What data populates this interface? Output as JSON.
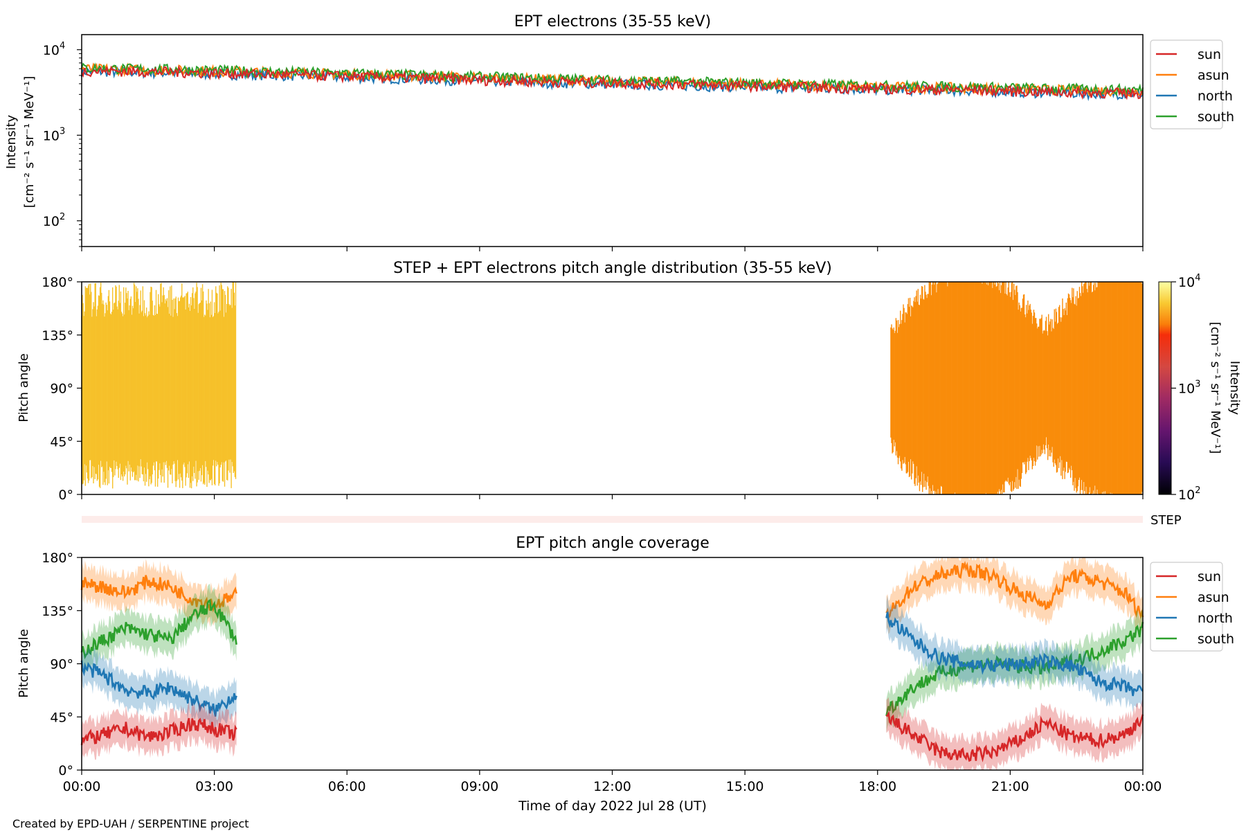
{
  "footer": {
    "credit": "Created by EPD-UAH / SERPENTINE project"
  },
  "x_axis": {
    "label": "Time of day 2022 Jul 28 (UT)",
    "ticks": [
      "00:00",
      "03:00",
      "06:00",
      "09:00",
      "12:00",
      "15:00",
      "18:00",
      "21:00",
      "00:00"
    ],
    "range_hours": [
      0,
      24
    ]
  },
  "colors": {
    "sun": "#d62728",
    "asun": "#ff7f0e",
    "north": "#1f77b4",
    "south": "#2ca02c"
  },
  "chart_data": [
    {
      "type": "line",
      "title": "EPT electrons (35-55 keV)",
      "ylabel_line1": "Intensity",
      "ylabel_line2": "[cm⁻² s⁻¹ sr⁻¹ MeV⁻¹]",
      "yscale": "log",
      "ylim": [
        50,
        15000
      ],
      "yticks": [
        {
          "base": "10",
          "exp": "2",
          "value": 100
        },
        {
          "base": "10",
          "exp": "3",
          "value": 1000
        },
        {
          "base": "10",
          "exp": "4",
          "value": 10000
        }
      ],
      "legend": {
        "placement": "outside-right",
        "entries": [
          "sun",
          "asun",
          "north",
          "south"
        ]
      },
      "x": [
        0,
        2,
        4,
        6,
        8,
        10,
        12,
        14,
        16,
        18,
        20,
        22,
        24
      ],
      "series": [
        {
          "name": "sun",
          "color": "#d62728",
          "values": [
            5700,
            5500,
            5200,
            4900,
            4600,
            4300,
            4100,
            3900,
            3700,
            3500,
            3400,
            3200,
            3100
          ]
        },
        {
          "name": "asun",
          "color": "#ff7f0e",
          "values": [
            6000,
            5800,
            5500,
            5200,
            4900,
            4600,
            4300,
            4100,
            3900,
            3700,
            3600,
            3400,
            3300
          ]
        },
        {
          "name": "north",
          "color": "#1f77b4",
          "values": [
            5600,
            5400,
            5100,
            4800,
            4500,
            4200,
            4000,
            3800,
            3600,
            3450,
            3350,
            3150,
            3050
          ]
        },
        {
          "name": "south",
          "color": "#2ca02c",
          "values": [
            6100,
            5900,
            5600,
            5300,
            5000,
            4700,
            4400,
            4200,
            4000,
            3800,
            3700,
            3500,
            3400
          ]
        }
      ]
    },
    {
      "type": "heatmap",
      "title": "STEP + EPT electrons pitch angle distribution (35-55 keV)",
      "ylabel": "Pitch angle",
      "ylim": [
        0,
        180
      ],
      "yticks": [
        "0°",
        "45°",
        "90°",
        "135°",
        "180°"
      ],
      "colorbar": {
        "label_line1": "Intensity",
        "label_line2": "[cm⁻² s⁻¹ sr⁻¹ MeV⁻¹]",
        "ticks": [
          {
            "base": "10",
            "exp": "2",
            "value": 100
          },
          {
            "base": "10",
            "exp": "3",
            "value": 1000
          },
          {
            "base": "10",
            "exp": "4",
            "value": 10000
          }
        ],
        "range": [
          100,
          10000
        ]
      },
      "segments": [
        {
          "start_h": 0.0,
          "end_h": 3.5,
          "intensity": 5800,
          "color": "#f6c12a"
        },
        {
          "start_h": 18.3,
          "end_h": 24.0,
          "intensity": 3500,
          "color": "#f98c0a"
        }
      ],
      "step_bar_label": "STEP"
    },
    {
      "type": "line",
      "title": "EPT pitch angle coverage",
      "ylabel": "Pitch angle",
      "ylim": [
        0,
        180
      ],
      "yticks": [
        "0°",
        "45°",
        "90°",
        "135°",
        "180°"
      ],
      "legend": {
        "placement": "outside-right",
        "entries": [
          "sun",
          "asun",
          "north",
          "south"
        ]
      },
      "segments": [
        {
          "x": [
            0.0,
            0.5,
            1.0,
            1.5,
            2.0,
            2.5,
            3.0,
            3.5
          ],
          "series": [
            {
              "name": "sun",
              "color": "#d62728",
              "values": [
                25,
                30,
                35,
                28,
                32,
                40,
                35,
                30
              ]
            },
            {
              "name": "asun",
              "color": "#ff7f0e",
              "values": [
                158,
                155,
                150,
                160,
                155,
                145,
                140,
                148
              ]
            },
            {
              "name": "north",
              "color": "#1f77b4",
              "values": [
                88,
                80,
                68,
                65,
                70,
                60,
                50,
                65
              ]
            },
            {
              "name": "south",
              "color": "#2ca02c",
              "values": [
                100,
                110,
                120,
                115,
                110,
                130,
                140,
                110
              ]
            }
          ]
        },
        {
          "x": [
            18.2,
            18.8,
            19.4,
            20.0,
            20.6,
            21.2,
            21.8,
            22.4,
            23.0,
            23.6,
            24.0
          ],
          "series": [
            {
              "name": "sun",
              "color": "#d62728",
              "values": [
                45,
                30,
                15,
                12,
                15,
                25,
                40,
                28,
                25,
                30,
                45
              ]
            },
            {
              "name": "asun",
              "color": "#ff7f0e",
              "values": [
                130,
                155,
                165,
                170,
                165,
                150,
                140,
                165,
                160,
                150,
                130
              ]
            },
            {
              "name": "north",
              "color": "#1f77b4",
              "values": [
                130,
                110,
                95,
                90,
                88,
                90,
                92,
                88,
                75,
                70,
                65
              ]
            },
            {
              "name": "south",
              "color": "#2ca02c",
              "values": [
                50,
                70,
                82,
                88,
                90,
                88,
                86,
                92,
                100,
                110,
                120
              ]
            }
          ]
        }
      ]
    }
  ]
}
